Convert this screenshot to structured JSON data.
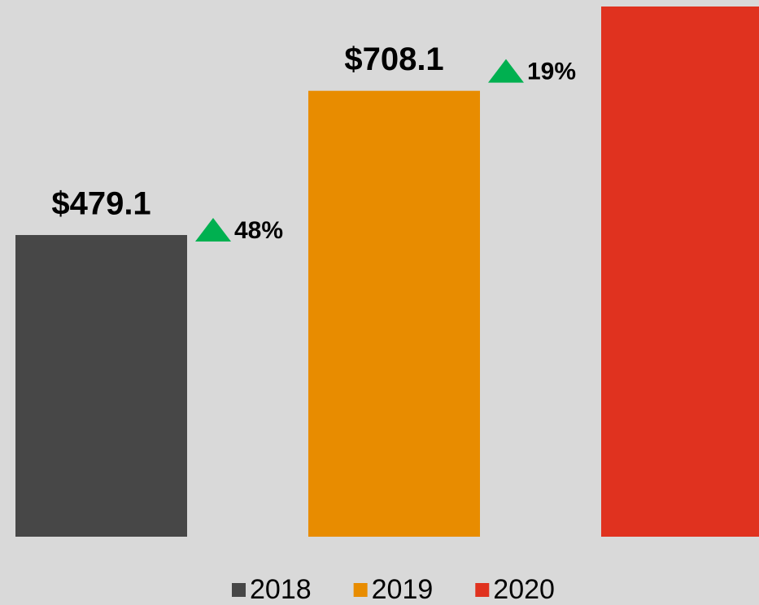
{
  "chart_data": {
    "type": "bar",
    "categories": [
      "2018",
      "2019",
      "2020"
    ],
    "values": [
      479.1,
      708.1,
      842
    ],
    "value_labels": [
      "$479.1",
      "$708.1",
      null
    ],
    "colors": [
      "#474747",
      "#e88c00",
      "#e0321f"
    ],
    "annotations": [
      "48%",
      "19%"
    ],
    "annotation_color": "#00b050",
    "ylim": [
      0,
      842
    ],
    "legend": "bottom"
  }
}
